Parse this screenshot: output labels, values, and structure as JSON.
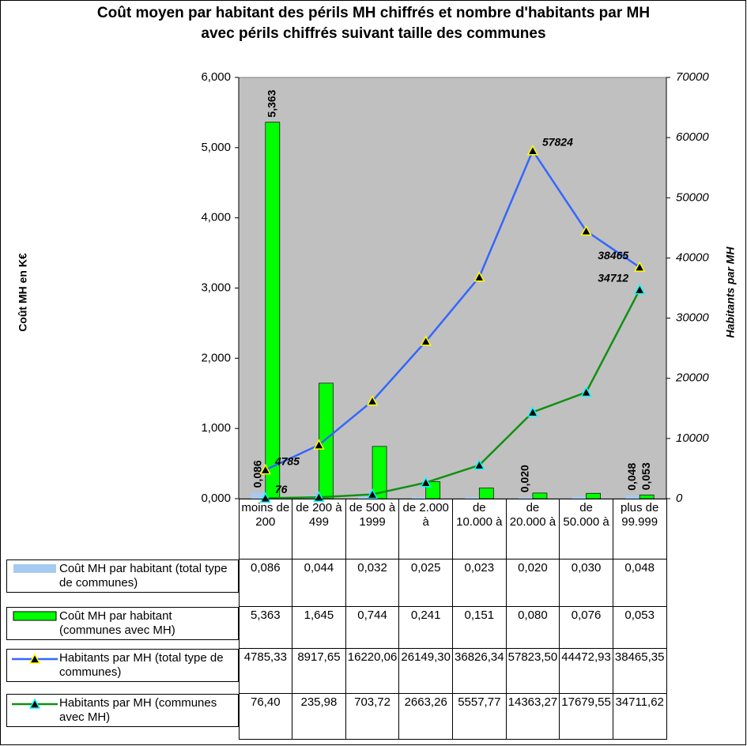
{
  "chart_data": {
    "type": "bar_line",
    "title": "Coût moyen par habitant des périls MH chiffrés  et nombre d'habitants par MH avec périls chiffrés suivant taille des communes",
    "ylabel": "Coût MH en K€",
    "y2label": "Habitants par MH",
    "categories": [
      "moins de 200",
      "de 200 à 499",
      "de 500 à 1999",
      "de 2.000 à",
      "de 10.000 à",
      "de 20.000 à",
      "de 50.000 à",
      "plus de 99.999"
    ],
    "ylim": [
      0,
      6
    ],
    "yticks": [
      {
        "value": 0,
        "label": "0,000"
      },
      {
        "value": 1,
        "label": "1,000"
      },
      {
        "value": 2,
        "label": "2,000"
      },
      {
        "value": 3,
        "label": "3,000"
      },
      {
        "value": 4,
        "label": "4,000"
      },
      {
        "value": 5,
        "label": "5,000"
      },
      {
        "value": 6,
        "label": "6,000"
      }
    ],
    "y2lim": [
      0,
      70000
    ],
    "y2ticks": [
      0,
      10000,
      20000,
      30000,
      40000,
      50000,
      60000,
      70000
    ],
    "series": [
      {
        "name": "Coût MH par habitant (total type de communes)",
        "type": "bar",
        "color": "#a6caf0",
        "values": [
          0.086,
          0.044,
          0.032,
          0.025,
          0.023,
          0.02,
          0.03,
          0.048
        ],
        "table_labels": [
          "0,086",
          "0,044",
          "0,032",
          "0,025",
          "0,023",
          "0,020",
          "0,030",
          "0,048"
        ],
        "value_labels": [
          "0,086",
          null,
          null,
          null,
          null,
          "0,020",
          null,
          "0,048"
        ]
      },
      {
        "name": "Coût MH par habitant (communes avec MH)",
        "type": "bar",
        "color": "#00ff00",
        "values": [
          5.363,
          1.645,
          0.744,
          0.241,
          0.151,
          0.08,
          0.076,
          0.053
        ],
        "table_labels": [
          "5,363",
          "1,645",
          "0,744",
          "0,241",
          "0,151",
          "0,080",
          "0,076",
          "0,053"
        ],
        "value_labels": [
          "5,363",
          null,
          null,
          null,
          null,
          null,
          null,
          "0,053"
        ]
      },
      {
        "name": "Habitants par MH (total type de communes)",
        "type": "line",
        "axis": "y2",
        "color": "#3366ff",
        "marker_edge": "#ffff00",
        "values": [
          4785.33,
          8917.65,
          16220.06,
          26149.3,
          36826.34,
          57823.5,
          44472.93,
          38465.35
        ],
        "table_labels": [
          "4785,33",
          "8917,65",
          "16220,06",
          "26149,30",
          "36826,34",
          "57823,50",
          "44472,93",
          "38465,35"
        ],
        "value_labels": [
          "4785",
          null,
          null,
          null,
          null,
          "57824",
          null,
          "38465"
        ]
      },
      {
        "name": "Habitants par MH (communes avec MH)",
        "type": "line",
        "axis": "y2",
        "color": "#109010",
        "marker_edge": "#00ffff",
        "values": [
          76.4,
          235.98,
          703.72,
          2663.26,
          5557.77,
          14363.27,
          17679.55,
          34711.62
        ],
        "table_labels": [
          "76,40",
          "235,98",
          "703,72",
          "2663,26",
          "5557,77",
          "14363,27",
          "17679,55",
          "34711,62"
        ],
        "value_labels": [
          "76",
          null,
          null,
          null,
          null,
          null,
          null,
          "34712"
        ]
      }
    ]
  }
}
